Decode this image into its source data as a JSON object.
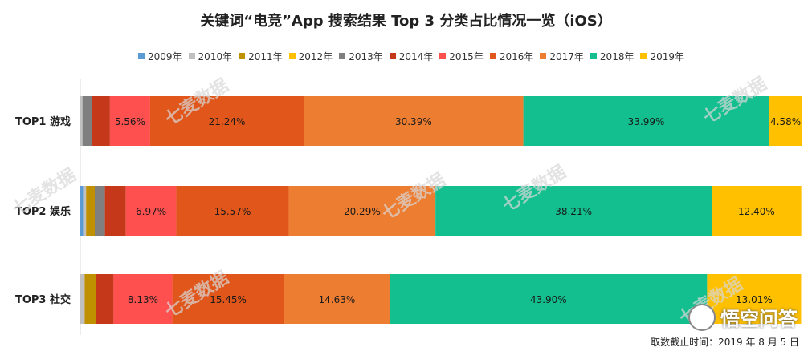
{
  "chart_data": {
    "type": "stacked-bar-horizontal",
    "title": "关键词“电竞”App 搜索结果 Top 3 分类占比情况一览（iOS）",
    "legend_position": "top",
    "series_names": [
      "2009年",
      "2010年",
      "2011年",
      "2012年",
      "2013年",
      "2014年",
      "2015年",
      "2016年",
      "2017年",
      "2018年",
      "2019年"
    ],
    "colors": [
      "#5B9BD5",
      "#C0C0C0",
      "#BF9000",
      "#FFC000",
      "#7F7F7F",
      "#C5391A",
      "#FF5050",
      "#E0561B",
      "#ED7D31",
      "#13BF8F",
      "#FFC000"
    ],
    "categories": [
      "TOP1 游戏",
      "TOP2 娱乐",
      "TOP3 社交"
    ],
    "bars": [
      {
        "values": [
          0,
          0.3,
          0,
          0,
          1.3,
          2.5,
          5.56,
          21.24,
          30.39,
          33.99,
          4.58
        ],
        "labels": [
          "",
          "",
          "",
          "",
          "",
          "",
          "5.56%",
          "21.24%",
          "30.39%",
          "33.99%",
          "4.58%"
        ]
      },
      {
        "values": [
          0.4,
          0.4,
          1.2,
          0,
          1.4,
          2.9,
          6.97,
          15.57,
          20.29,
          38.21,
          12.4
        ],
        "labels": [
          "",
          "",
          "",
          "",
          "",
          "",
          "6.97%",
          "15.57%",
          "20.29%",
          "38.21%",
          "12.40%"
        ]
      },
      {
        "values": [
          0,
          0.6,
          1.6,
          0,
          0,
          2.4,
          8.13,
          15.45,
          14.63,
          43.9,
          13.01
        ],
        "labels": [
          "",
          "",
          "",
          "",
          "",
          "",
          "8.13%",
          "15.45%",
          "14.63%",
          "43.90%",
          "13.01%"
        ]
      }
    ],
    "xlim": [
      0,
      100
    ],
    "grid": false
  },
  "footnote": "取数截止时间：2019 年 8 月 5 日",
  "watermark": "七麦数据",
  "brand": "悟空问答"
}
